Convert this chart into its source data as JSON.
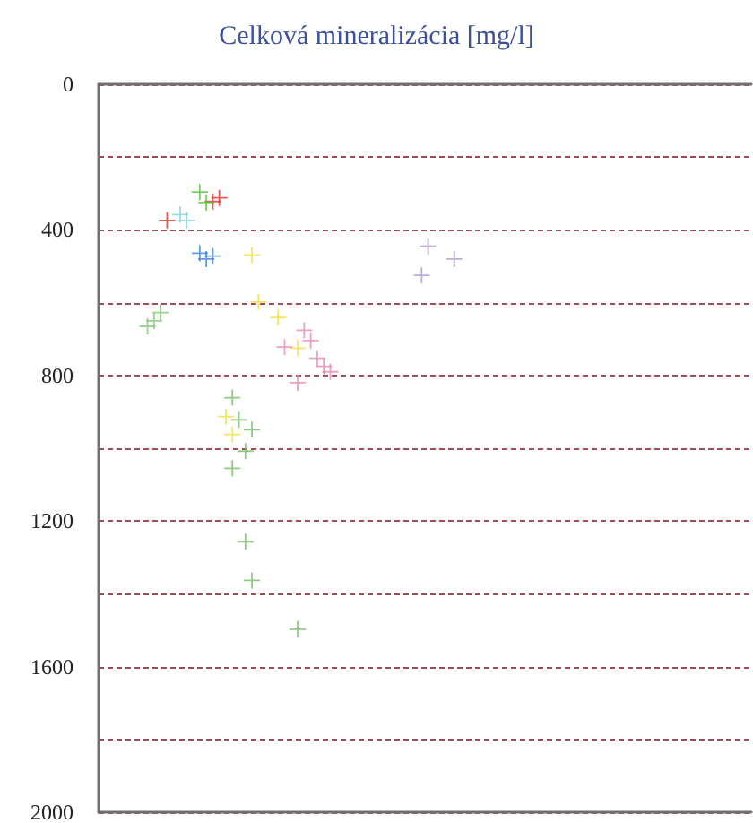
{
  "chart_data": {
    "type": "scatter",
    "title": "Celková mineralizácia [mg/l]",
    "categories": [
      null,
      null,
      null,
      null,
      null,
      null,
      null,
      null,
      null,
      null,
      null,
      null,
      null,
      null,
      null,
      null,
      null,
      null,
      null,
      null,
      null,
      null,
      null,
      null,
      null,
      null,
      null,
      null,
      null,
      null,
      null,
      null,
      null,
      null,
      null,
      null,
      null,
      null,
      null,
      null,
      null,
      null,
      null,
      null,
      null,
      null,
      null,
      null,
      null,
      null,
      null,
      null,
      null,
      null,
      null,
      null,
      null,
      null,
      null,
      null,
      null,
      null,
      null,
      null,
      null,
      null,
      null,
      null,
      null,
      null,
      null,
      null,
      null,
      null,
      null,
      null,
      null,
      null,
      null,
      null,
      null,
      null,
      null,
      null,
      null,
      null,
      null,
      null,
      null,
      null,
      null,
      null,
      null,
      null,
      null,
      null,
      null,
      null,
      null,
      null
    ],
    "ylim": [
      2000,
      0
    ],
    "yticks": [
      0,
      {
        "value": 200,
        "label": null
      },
      400,
      {
        "value": 600,
        "label": null
      },
      800,
      {
        "value": 1000,
        "label": null
      },
      1200,
      {
        "value": 1400,
        "label": null
      },
      1600,
      {
        "value": 1800,
        "label": null
      },
      2000
    ],
    "tick_labels": "y",
    "grid": "y",
    "marker": "cross",
    "series": [
      {
        "color": "#e8302a",
        "values": [
          null,
          null,
          null,
          null,
          null,
          null,
          null,
          null,
          null,
          null,
          374,
          null,
          null,
          null,
          null,
          null,
          null,
          322,
          312,
          null,
          null,
          null,
          null,
          null,
          null,
          null,
          null,
          null,
          null,
          null,
          null,
          null,
          null,
          null,
          null,
          null,
          null,
          null,
          null,
          null,
          null,
          null,
          null,
          null,
          null,
          null,
          null,
          null,
          null,
          null,
          null,
          null,
          null,
          null,
          null,
          null,
          null,
          null,
          null,
          null,
          null,
          null,
          null,
          null,
          null,
          null,
          null,
          null,
          null,
          null,
          null,
          null,
          null,
          null,
          null,
          null,
          null,
          null,
          null,
          null,
          null,
          null,
          null,
          null,
          null,
          null,
          null,
          null,
          null,
          null,
          null,
          null,
          null,
          null,
          null,
          null,
          null,
          null,
          null,
          null
        ]
      },
      {
        "color": "#5cbf3a",
        "values": [
          null,
          null,
          null,
          null,
          null,
          null,
          null,
          null,
          null,
          null,
          null,
          null,
          null,
          null,
          null,
          296,
          325,
          null,
          null,
          null,
          null,
          null,
          null,
          null,
          null,
          null,
          null,
          null,
          null,
          null,
          null,
          null,
          null,
          null,
          null,
          null,
          null,
          null,
          null,
          null,
          null,
          null,
          null,
          null,
          null,
          null,
          null,
          null,
          null,
          null,
          null,
          null,
          null,
          null,
          null,
          null,
          null,
          null,
          null,
          null,
          null,
          null,
          null,
          null,
          null,
          null,
          null,
          null,
          null,
          null,
          null,
          null,
          null,
          null,
          null,
          null,
          null,
          null,
          null,
          null,
          null,
          null,
          null,
          null,
          null,
          null,
          null,
          null,
          null,
          null,
          null,
          null,
          null,
          null,
          null,
          null,
          null,
          null,
          null,
          null
        ]
      },
      {
        "color": "#7fd0d8",
        "values": [
          null,
          null,
          null,
          null,
          null,
          null,
          null,
          null,
          null,
          null,
          null,
          null,
          358,
          374,
          null,
          null,
          null,
          null,
          null,
          null,
          null,
          null,
          null,
          null,
          null,
          null,
          null,
          null,
          null,
          null,
          null,
          null,
          null,
          null,
          null,
          null,
          null,
          null,
          null,
          null,
          null,
          null,
          null,
          null,
          null,
          null,
          null,
          null,
          null,
          null,
          null,
          null,
          null,
          null,
          null,
          null,
          null,
          null,
          null,
          null,
          null,
          null,
          null,
          null,
          null,
          null,
          null,
          null,
          null,
          null,
          null,
          null,
          null,
          null,
          null,
          null,
          null,
          null,
          null,
          null,
          null,
          null,
          null,
          null,
          null,
          null,
          null,
          null,
          null,
          null,
          null,
          null,
          null,
          null,
          null,
          null,
          null,
          null,
          null,
          null
        ]
      },
      {
        "color": "#3a7fd5",
        "values": [
          null,
          null,
          null,
          null,
          null,
          null,
          null,
          null,
          null,
          null,
          null,
          null,
          null,
          null,
          null,
          464,
          480,
          472,
          null,
          null,
          null,
          null,
          null,
          null,
          null,
          null,
          null,
          null,
          null,
          null,
          null,
          null,
          null,
          null,
          null,
          null,
          null,
          null,
          null,
          null,
          null,
          null,
          null,
          null,
          null,
          null,
          null,
          null,
          null,
          null,
          null,
          null,
          null,
          null,
          null,
          null,
          null,
          null,
          null,
          null,
          null,
          null,
          null,
          null,
          null,
          null,
          null,
          null,
          null,
          null,
          null,
          null,
          null,
          null,
          null,
          null,
          null,
          null,
          null,
          null,
          null,
          null,
          null,
          null,
          null,
          null,
          null,
          null,
          null,
          null,
          null,
          null,
          null,
          null,
          null,
          null,
          null,
          null,
          null,
          null
        ]
      },
      {
        "color": "#f0e040",
        "values": [
          null,
          null,
          null,
          null,
          null,
          null,
          null,
          null,
          null,
          null,
          null,
          null,
          null,
          null,
          null,
          null,
          null,
          null,
          null,
          913,
          962,
          null,
          null,
          469,
          598,
          null,
          null,
          641,
          null,
          null,
          725,
          null,
          null,
          null,
          null,
          null,
          null,
          null,
          null,
          null,
          null,
          null,
          null,
          null,
          null,
          null,
          null,
          null,
          null,
          null,
          null,
          null,
          null,
          null,
          null,
          null,
          null,
          null,
          null,
          null,
          null,
          null,
          null,
          null,
          null,
          null,
          null,
          null,
          null,
          null,
          null,
          null,
          null,
          null,
          null,
          null,
          null,
          null,
          null,
          null,
          null,
          null,
          null,
          null,
          null,
          null,
          null,
          null,
          null,
          null,
          null,
          null,
          null,
          null,
          null,
          null,
          null,
          null,
          null,
          null
        ]
      },
      {
        "color": "#b497c8",
        "values": [
          null,
          null,
          null,
          null,
          null,
          null,
          null,
          null,
          null,
          null,
          null,
          null,
          null,
          null,
          null,
          null,
          null,
          null,
          null,
          null,
          null,
          null,
          null,
          null,
          null,
          null,
          null,
          null,
          null,
          null,
          null,
          null,
          null,
          null,
          null,
          null,
          null,
          null,
          null,
          null,
          null,
          null,
          null,
          null,
          null,
          null,
          null,
          null,
          null,
          525,
          445,
          null,
          null,
          null,
          480,
          null,
          null,
          null,
          null,
          null,
          null,
          null,
          null,
          null,
          null,
          null,
          null,
          null,
          null,
          null,
          null,
          null,
          null,
          null,
          null,
          null,
          null,
          null,
          null,
          null,
          null,
          null,
          null,
          null,
          null,
          null,
          null,
          null,
          null,
          null,
          null,
          null,
          null,
          null,
          null,
          null,
          null,
          null,
          null,
          null
        ]
      },
      {
        "color": "#80cc70",
        "values": [
          null,
          null,
          null,
          null,
          null,
          null,
          null,
          665,
          650,
          627,
          null,
          null,
          null,
          null,
          null,
          null,
          null,
          null,
          null,
          null,
          null,
          null,
          null,
          null,
          null,
          null,
          null,
          null,
          null,
          null,
          null,
          null,
          null,
          null,
          null,
          null,
          null,
          null,
          null,
          null,
          null,
          null,
          null,
          null,
          null,
          null,
          null,
          null,
          null,
          null,
          null,
          null,
          null,
          null,
          null,
          null,
          null,
          null,
          null,
          null,
          null,
          null,
          null,
          null,
          null,
          null,
          null,
          null,
          null,
          null,
          null,
          null,
          null,
          null,
          null,
          null,
          null,
          null,
          null,
          null,
          null,
          null,
          null,
          null,
          null,
          null,
          null,
          null,
          null,
          null,
          null,
          null,
          null,
          null,
          null,
          null,
          null,
          null,
          null,
          null
        ]
      },
      {
        "color": "#e888b8",
        "values": [
          null,
          null,
          null,
          null,
          null,
          null,
          null,
          null,
          null,
          null,
          null,
          null,
          null,
          null,
          null,
          null,
          null,
          null,
          null,
          null,
          null,
          null,
          null,
          null,
          null,
          null,
          null,
          null,
          722,
          null,
          820,
          676,
          704,
          753,
          775,
          790,
          null,
          null,
          null,
          null,
          null,
          null,
          null,
          null,
          null,
          null,
          null,
          null,
          null,
          null,
          null,
          null,
          null,
          null,
          null,
          null,
          null,
          null,
          null,
          null,
          null,
          null,
          null,
          null,
          null,
          null,
          null,
          null,
          null,
          null,
          null,
          null,
          null,
          null,
          null,
          null,
          null,
          null,
          null,
          null,
          null,
          null,
          null,
          null,
          null,
          null,
          null,
          null,
          null,
          null,
          null,
          null,
          null,
          null,
          null,
          null,
          null,
          null,
          null,
          null
        ]
      },
      {
        "color": "#70c060",
        "values": [
          null,
          null,
          null,
          null,
          null,
          null,
          null,
          null,
          null,
          null,
          null,
          null,
          null,
          null,
          null,
          null,
          null,
          null,
          null,
          null,
          861,
          922,
          1008,
          949,
          null,
          null,
          null,
          null,
          null,
          null,
          null,
          null,
          null,
          null,
          null,
          null,
          null,
          null,
          null,
          null,
          null,
          null,
          null,
          null,
          null,
          null,
          null,
          null,
          null,
          null,
          null,
          null,
          null,
          null,
          null,
          null,
          null,
          null,
          null,
          null,
          null,
          null,
          null,
          null,
          null,
          null,
          null,
          null,
          null,
          null,
          null,
          null,
          null,
          null,
          null,
          null,
          null,
          null,
          null,
          null,
          null,
          null,
          null,
          null,
          null,
          null,
          null,
          null,
          null,
          null,
          null,
          null,
          null,
          null,
          null,
          null,
          null,
          null,
          null,
          null
        ]
      },
      {
        "color": "#70c060",
        "values": [
          null,
          null,
          null,
          null,
          null,
          null,
          null,
          null,
          null,
          null,
          null,
          null,
          null,
          null,
          null,
          null,
          null,
          null,
          null,
          null,
          1055,
          null,
          1257,
          1363,
          null,
          null,
          null,
          null,
          null,
          null,
          1497,
          null,
          null,
          null,
          null,
          null,
          null,
          null,
          null,
          null,
          null,
          null,
          null,
          null,
          null,
          null,
          null,
          null,
          null,
          null,
          null,
          null,
          null,
          null,
          null,
          null,
          null,
          null,
          null,
          null,
          null,
          null,
          null,
          null,
          null,
          null,
          null,
          null,
          null,
          null,
          null,
          null,
          null,
          null,
          null,
          null,
          null,
          null,
          null,
          null,
          null,
          null,
          null,
          null,
          null,
          null,
          null,
          null,
          null,
          null,
          null,
          null,
          null,
          null,
          null,
          null,
          null,
          null,
          null,
          null
        ]
      }
    ]
  }
}
